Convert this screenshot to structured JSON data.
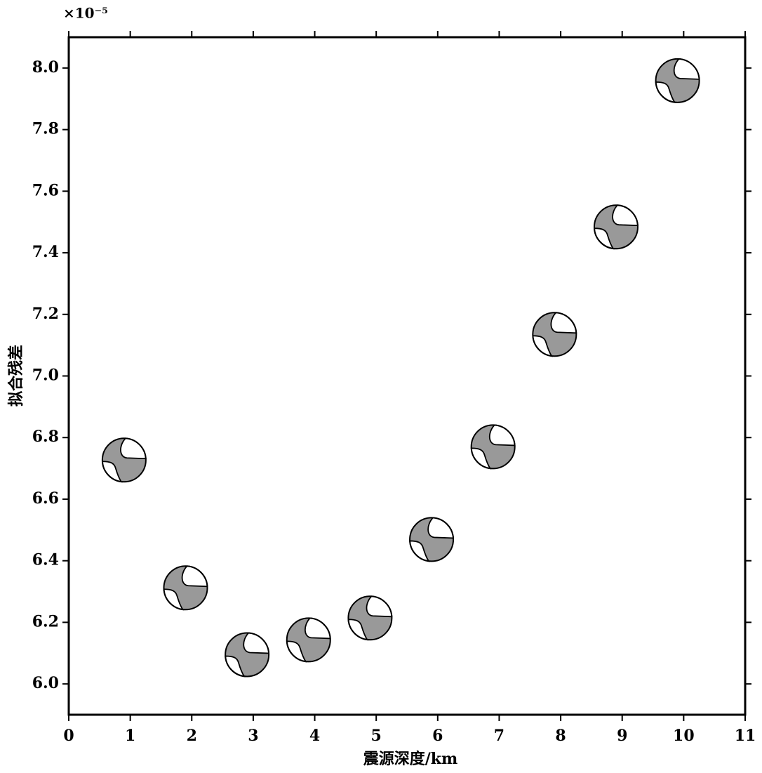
{
  "chart_data": {
    "type": "scatter",
    "x_label": "震源深度/km",
    "y_label": "拟合残差",
    "y_multiplier": "×10⁻⁵",
    "x": [
      0.9,
      1.9,
      2.9,
      3.9,
      4.9,
      5.9,
      6.9,
      7.9,
      8.9,
      9.9
    ],
    "values": [
      6.727,
      6.312,
      6.095,
      6.143,
      6.214,
      6.469,
      6.77,
      7.135,
      7.484,
      7.959
    ],
    "color": "#999999",
    "xlim": [
      0,
      11
    ],
    "ylim": [
      5.9,
      8.1
    ],
    "xticks": [
      0,
      1,
      2,
      3,
      4,
      5,
      6,
      7,
      8,
      9,
      10,
      11
    ],
    "yticks": [
      {
        "value": 6,
        "label": "6.0"
      },
      6.2,
      6.4,
      6.6,
      6.8,
      {
        "value": 7,
        "label": "7.0"
      },
      7.2,
      7.4,
      7.6,
      7.8,
      {
        "value": 8,
        "label": "8.0"
      }
    ]
  }
}
